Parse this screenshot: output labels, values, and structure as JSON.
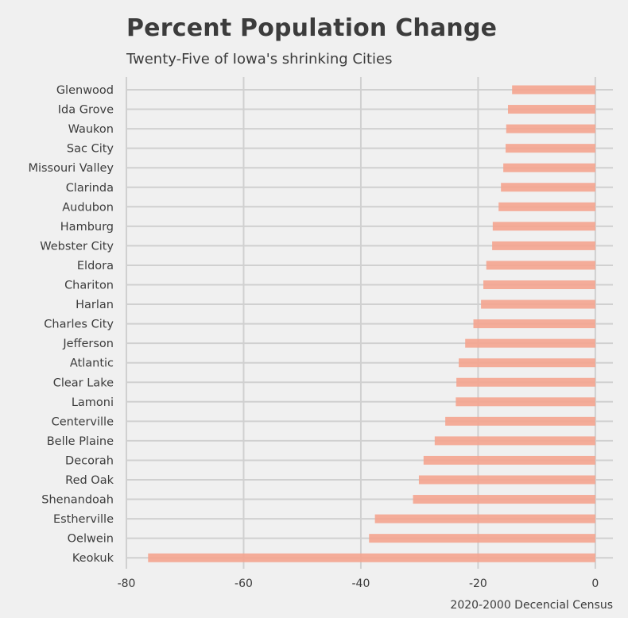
{
  "chart_data": {
    "type": "bar",
    "orientation": "horizontal",
    "title": "Percent Population Change",
    "subtitle": "Twenty-Five of Iowa's shrinking Cities",
    "xlabel": "2020-2000 Decencial Census",
    "ylabel": "",
    "xlim": [
      -80,
      3
    ],
    "xticks": [
      -80,
      -60,
      -40,
      -20,
      0
    ],
    "grid": true,
    "bar_color": "#f4a48f",
    "background": "#f0f0f0",
    "categories": [
      "Glenwood",
      "Ida Grove",
      "Waukon",
      "Sac City",
      "Missouri Valley",
      "Clarinda",
      "Audubon",
      "Hamburg",
      "Webster City",
      "Eldora",
      "Chariton",
      "Harlan",
      "Charles City",
      "Jefferson",
      "Atlantic",
      "Clear Lake",
      "Lamoni",
      "Centerville",
      "Belle Plaine",
      "Decorah",
      "Red Oak",
      "Shenandoah",
      "Estherville",
      "Oelwein",
      "Keokuk"
    ],
    "values": [
      -14.2,
      -14.9,
      -15.2,
      -15.3,
      -15.7,
      -16.1,
      -16.5,
      -17.5,
      -17.6,
      -18.6,
      -19.1,
      -19.5,
      -20.8,
      -22.2,
      -23.3,
      -23.7,
      -23.8,
      -25.6,
      -27.4,
      -29.3,
      -30.1,
      -31.1,
      -37.6,
      -38.6,
      -76.3
    ]
  }
}
